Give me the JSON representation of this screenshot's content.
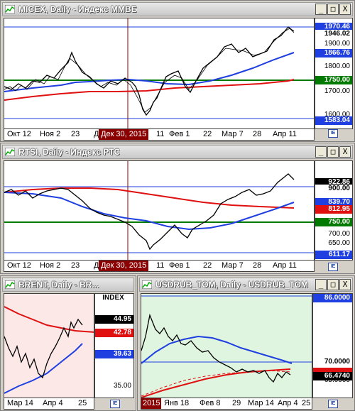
{
  "colors": {
    "price": "#000000",
    "sma_blue": "#1f3fe0",
    "sma_red": "#e01010",
    "level_green": "#007a00",
    "cursor": "#8b0000",
    "brent_bg": "#fde8e8",
    "usd_bg": "#dff5df"
  },
  "buttons": {
    "minimize": "_",
    "maximize": "□",
    "close": "X"
  },
  "micex": {
    "title": "MICEX, Daily - Индекс ММВБ",
    "tags": {
      "high": "1970.46",
      "last": "1946.02",
      "blue": "1866.76",
      "green": "1750.00",
      "low": "1583.04"
    },
    "yticks": [
      "1900.00",
      "1800.00",
      "1700.00",
      "1600.00"
    ],
    "xticks": [
      "Окт 12",
      "Ноя 2",
      "23",
      "Д",
      "11",
      "Фев 1",
      "22",
      "Мар 7",
      "28",
      "Апр 11"
    ],
    "cursor_date": "Дек 30, 2015"
  },
  "rtsi": {
    "title": "RTSI, Daily - Индекс РТС",
    "tags": {
      "last": "922.86",
      "top": "900.00",
      "blue": "839.70",
      "red": "812.95",
      "green": "750.00",
      "low": "611.17"
    },
    "yticks": [
      "900.00",
      "850.00",
      "800.00",
      "750.00",
      "700.00",
      "650.00"
    ],
    "xticks": [
      "Окт 12",
      "Ноя 2",
      "23",
      "Д",
      "11",
      "Фев 1",
      "22",
      "Мар 7",
      "28",
      "Апр 11"
    ],
    "cursor_date": "Дек 30, 2015"
  },
  "brent": {
    "title": "BRENT, Daily - BR...",
    "index_label": "INDEX",
    "tags": {
      "last": "44.95",
      "red": "42.78",
      "blue": "39.63"
    },
    "yticks": [
      "35.00"
    ],
    "xticks": [
      "Мар 14",
      "Апр 4",
      "25"
    ]
  },
  "usdrub": {
    "title": "USDRUB_TOM, Daily - USDRUB_TOM",
    "tags": {
      "top": "86.0000",
      "level": "70.0000",
      "last": "66.4740"
    },
    "yticks": [
      "65.0000"
    ],
    "xticks": [
      "2015",
      "Янв 18",
      "Фев 8",
      "29",
      "Мар 14",
      "Апр 4",
      "25"
    ]
  }
}
